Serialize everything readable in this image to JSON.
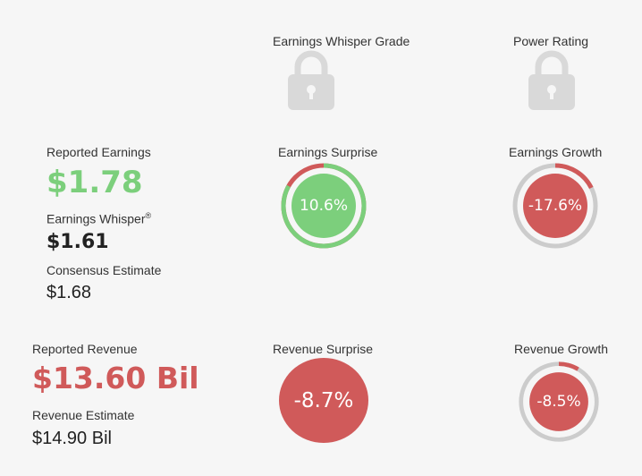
{
  "headers": {
    "grade": "Earnings Whisper Grade",
    "power": "Power Rating"
  },
  "earnings": {
    "reported_label": "Reported Earnings",
    "reported_value": "$1.78",
    "whisper_label": "Earnings Whisper",
    "whisper_sup": "®",
    "whisper_value": "$1.61",
    "consensus_label": "Consensus Estimate",
    "consensus_value": "$1.68",
    "surprise_label": "Earnings Surprise",
    "surprise_value": "10.6%",
    "surprise_fraction": 0.106,
    "growth_label": "Earnings Growth",
    "growth_value": "-17.6%",
    "growth_fraction": 0.176
  },
  "revenue": {
    "reported_label": "Reported Revenue",
    "reported_value": "$13.60 Bil",
    "estimate_label": "Revenue Estimate",
    "estimate_value": "$14.90 Bil",
    "surprise_label": "Revenue Surprise",
    "surprise_value": "-8.7%",
    "growth_label": "Revenue Growth",
    "growth_value": "-8.5%",
    "growth_fraction": 0.085
  },
  "colors": {
    "positive": "#7ccf7c",
    "negative": "#d05a5a",
    "track": "#cccccc",
    "lock": "#d9d9d9"
  },
  "icons": [
    "lock-icon",
    "lock-icon"
  ]
}
